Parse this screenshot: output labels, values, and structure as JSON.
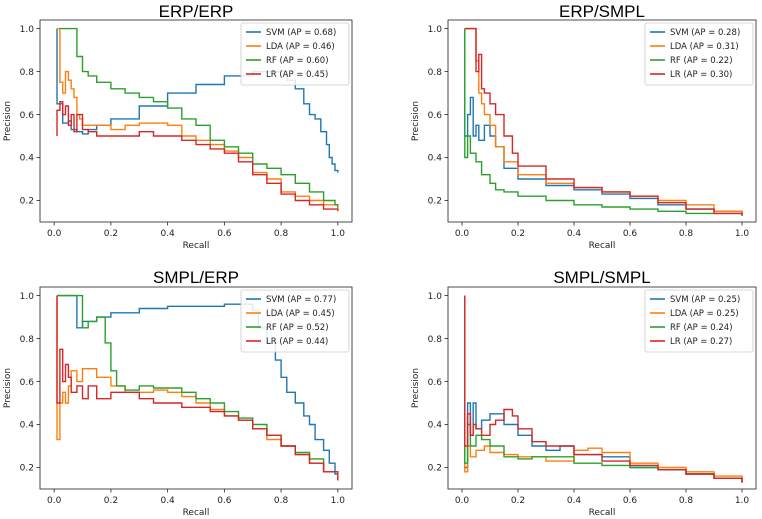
{
  "chart_data": [
    {
      "type": "line",
      "title": "ERP/ERP",
      "xlabel": "Recall",
      "ylabel": "Precision",
      "xlim": [
        -0.05,
        1.05
      ],
      "ylim": [
        0.1,
        1.04
      ],
      "xticks": [
        "0.0",
        "0.2",
        "0.4",
        "0.6",
        "0.8",
        "1.0"
      ],
      "yticks": [
        "0.2",
        "0.4",
        "0.6",
        "0.8",
        "1.0"
      ],
      "legend_position": "top-right",
      "series": [
        {
          "name": "SVM (AP = 0.68)",
          "color": "#1f77b4",
          "x": [
            0.01,
            0.01,
            0.03,
            0.03,
            0.05,
            0.06,
            0.08,
            0.1,
            0.12,
            0.15,
            0.2,
            0.3,
            0.4,
            0.5,
            0.6,
            0.7,
            0.75,
            0.8,
            0.82,
            0.85,
            0.88,
            0.9,
            0.92,
            0.94,
            0.96,
            0.97,
            0.98,
            0.99,
            1.0
          ],
          "y": [
            1.0,
            0.65,
            0.62,
            0.56,
            0.57,
            0.53,
            0.52,
            0.51,
            0.53,
            0.55,
            0.58,
            0.64,
            0.7,
            0.74,
            0.78,
            0.8,
            0.8,
            0.8,
            0.76,
            0.72,
            0.65,
            0.6,
            0.58,
            0.52,
            0.46,
            0.4,
            0.37,
            0.34,
            0.33
          ]
        },
        {
          "name": "LDA (AP = 0.46)",
          "color": "#ff7f0e",
          "x": [
            0.01,
            0.02,
            0.03,
            0.04,
            0.05,
            0.06,
            0.07,
            0.08,
            0.09,
            0.1,
            0.12,
            0.15,
            0.2,
            0.25,
            0.3,
            0.35,
            0.4,
            0.45,
            0.5,
            0.55,
            0.6,
            0.65,
            0.7,
            0.75,
            0.8,
            0.85,
            0.9,
            0.95,
            1.0
          ],
          "y": [
            1.0,
            0.75,
            0.7,
            0.8,
            0.76,
            0.72,
            0.68,
            0.6,
            0.58,
            0.55,
            0.55,
            0.55,
            0.53,
            0.55,
            0.56,
            0.56,
            0.55,
            0.5,
            0.48,
            0.46,
            0.43,
            0.4,
            0.33,
            0.3,
            0.24,
            0.22,
            0.2,
            0.18,
            0.16
          ]
        },
        {
          "name": "RF (AP = 0.60)",
          "color": "#2ca02c",
          "x": [
            0.02,
            0.07,
            0.08,
            0.1,
            0.12,
            0.15,
            0.2,
            0.25,
            0.3,
            0.35,
            0.4,
            0.45,
            0.5,
            0.55,
            0.6,
            0.65,
            0.7,
            0.75,
            0.8,
            0.85,
            0.9,
            0.95,
            0.99,
            1.0
          ],
          "y": [
            1.0,
            1.0,
            0.87,
            0.8,
            0.78,
            0.75,
            0.72,
            0.7,
            0.68,
            0.66,
            0.63,
            0.58,
            0.55,
            0.48,
            0.45,
            0.42,
            0.37,
            0.35,
            0.32,
            0.28,
            0.24,
            0.2,
            0.18,
            0.17
          ]
        },
        {
          "name": "LR (AP = 0.45)",
          "color": "#d62728",
          "x": [
            0.01,
            0.01,
            0.02,
            0.03,
            0.04,
            0.05,
            0.06,
            0.07,
            0.08,
            0.1,
            0.12,
            0.15,
            0.2,
            0.25,
            0.3,
            0.35,
            0.4,
            0.45,
            0.5,
            0.55,
            0.6,
            0.65,
            0.7,
            0.75,
            0.8,
            0.85,
            0.9,
            0.95,
            1.0
          ],
          "y": [
            0.5,
            0.62,
            0.66,
            0.6,
            0.64,
            0.55,
            0.6,
            0.52,
            0.6,
            0.53,
            0.52,
            0.5,
            0.5,
            0.5,
            0.52,
            0.5,
            0.5,
            0.48,
            0.46,
            0.44,
            0.42,
            0.38,
            0.32,
            0.28,
            0.23,
            0.2,
            0.18,
            0.16,
            0.15
          ]
        }
      ]
    },
    {
      "type": "line",
      "title": "ERP/SMPL",
      "xlabel": "Recall",
      "ylabel": "Precision",
      "xlim": [
        -0.05,
        1.05
      ],
      "ylim": [
        0.1,
        1.04
      ],
      "xticks": [
        "0.0",
        "0.2",
        "0.4",
        "0.6",
        "0.8",
        "1.0"
      ],
      "yticks": [
        "0.2",
        "0.4",
        "0.6",
        "0.8",
        "1.0"
      ],
      "legend_position": "top-right",
      "series": [
        {
          "name": "SVM (AP = 0.28)",
          "color": "#1f77b4",
          "x": [
            0.01,
            0.01,
            0.02,
            0.03,
            0.04,
            0.05,
            0.06,
            0.08,
            0.1,
            0.12,
            0.15,
            0.2,
            0.3,
            0.4,
            0.5,
            0.6,
            0.7,
            0.8,
            0.9,
            1.0
          ],
          "y": [
            1.0,
            0.5,
            0.6,
            0.68,
            0.5,
            0.55,
            0.48,
            0.55,
            0.5,
            0.45,
            0.35,
            0.3,
            0.27,
            0.25,
            0.23,
            0.21,
            0.18,
            0.16,
            0.15,
            0.13
          ]
        },
        {
          "name": "LDA (AP = 0.31)",
          "color": "#ff7f0e",
          "x": [
            0.01,
            0.04,
            0.05,
            0.06,
            0.07,
            0.08,
            0.1,
            0.12,
            0.15,
            0.2,
            0.3,
            0.4,
            0.5,
            0.6,
            0.7,
            0.8,
            0.9,
            1.0
          ],
          "y": [
            1.0,
            1.0,
            0.85,
            0.7,
            0.65,
            0.6,
            0.55,
            0.45,
            0.38,
            0.32,
            0.28,
            0.26,
            0.24,
            0.22,
            0.2,
            0.18,
            0.15,
            0.13
          ]
        },
        {
          "name": "RF (AP = 0.22)",
          "color": "#2ca02c",
          "x": [
            0.01,
            0.01,
            0.02,
            0.03,
            0.05,
            0.07,
            0.1,
            0.12,
            0.15,
            0.2,
            0.3,
            0.4,
            0.5,
            0.6,
            0.7,
            0.8,
            0.9,
            1.0
          ],
          "y": [
            1.0,
            0.4,
            0.5,
            0.42,
            0.38,
            0.32,
            0.28,
            0.25,
            0.24,
            0.22,
            0.2,
            0.18,
            0.17,
            0.16,
            0.15,
            0.14,
            0.14,
            0.13
          ]
        },
        {
          "name": "LR (AP = 0.30)",
          "color": "#d62728",
          "x": [
            0.01,
            0.05,
            0.06,
            0.07,
            0.08,
            0.1,
            0.12,
            0.15,
            0.18,
            0.2,
            0.3,
            0.4,
            0.5,
            0.6,
            0.7,
            0.8,
            0.9,
            1.0
          ],
          "y": [
            1.0,
            0.8,
            0.88,
            0.72,
            0.7,
            0.65,
            0.6,
            0.5,
            0.42,
            0.36,
            0.3,
            0.26,
            0.24,
            0.22,
            0.19,
            0.16,
            0.14,
            0.13
          ]
        }
      ]
    },
    {
      "type": "line",
      "title": "SMPL/ERP",
      "xlabel": "Recall",
      "ylabel": "Precision",
      "xlim": [
        -0.05,
        1.05
      ],
      "ylim": [
        0.1,
        1.04
      ],
      "xticks": [
        "0.0",
        "0.2",
        "0.4",
        "0.6",
        "0.8",
        "1.0"
      ],
      "yticks": [
        "0.2",
        "0.4",
        "0.6",
        "0.8",
        "1.0"
      ],
      "legend_position": "top-right",
      "series": [
        {
          "name": "SVM (AP = 0.77)",
          "color": "#1f77b4",
          "x": [
            0.01,
            0.07,
            0.08,
            0.1,
            0.15,
            0.2,
            0.3,
            0.4,
            0.5,
            0.6,
            0.65,
            0.7,
            0.72,
            0.75,
            0.78,
            0.8,
            0.82,
            0.85,
            0.88,
            0.9,
            0.92,
            0.95,
            0.97,
            0.99,
            1.0
          ],
          "y": [
            1.0,
            1.0,
            0.85,
            0.88,
            0.9,
            0.92,
            0.94,
            0.95,
            0.95,
            0.96,
            0.96,
            0.93,
            0.85,
            0.78,
            0.7,
            0.62,
            0.55,
            0.5,
            0.44,
            0.4,
            0.33,
            0.28,
            0.22,
            0.17,
            0.14
          ]
        },
        {
          "name": "LDA (AP = 0.45)",
          "color": "#ff7f0e",
          "x": [
            0.01,
            0.01,
            0.02,
            0.03,
            0.04,
            0.05,
            0.06,
            0.08,
            0.1,
            0.15,
            0.2,
            0.25,
            0.3,
            0.35,
            0.4,
            0.45,
            0.5,
            0.55,
            0.6,
            0.65,
            0.7,
            0.75,
            0.8,
            0.85,
            0.9,
            0.95,
            1.0
          ],
          "y": [
            1.0,
            0.33,
            0.5,
            0.55,
            0.5,
            0.58,
            0.65,
            0.6,
            0.66,
            0.62,
            0.58,
            0.55,
            0.55,
            0.56,
            0.55,
            0.53,
            0.5,
            0.47,
            0.44,
            0.42,
            0.38,
            0.33,
            0.3,
            0.26,
            0.22,
            0.18,
            0.14
          ]
        },
        {
          "name": "RF (AP = 0.52)",
          "color": "#2ca02c",
          "x": [
            0.01,
            0.07,
            0.1,
            0.12,
            0.15,
            0.18,
            0.2,
            0.22,
            0.25,
            0.3,
            0.35,
            0.4,
            0.45,
            0.5,
            0.55,
            0.6,
            0.65,
            0.7,
            0.75,
            0.8,
            0.85,
            0.9,
            0.95,
            1.0
          ],
          "y": [
            1.0,
            1.0,
            0.85,
            0.88,
            0.9,
            0.78,
            0.65,
            0.58,
            0.56,
            0.58,
            0.57,
            0.57,
            0.55,
            0.52,
            0.5,
            0.46,
            0.43,
            0.4,
            0.35,
            0.3,
            0.27,
            0.24,
            0.18,
            0.14
          ]
        },
        {
          "name": "LR (AP = 0.44)",
          "color": "#d62728",
          "x": [
            0.01,
            0.01,
            0.02,
            0.03,
            0.04,
            0.05,
            0.06,
            0.08,
            0.1,
            0.12,
            0.15,
            0.2,
            0.25,
            0.3,
            0.35,
            0.4,
            0.45,
            0.5,
            0.55,
            0.6,
            0.65,
            0.7,
            0.75,
            0.8,
            0.85,
            0.9,
            0.95,
            1.0
          ],
          "y": [
            1.0,
            0.5,
            0.75,
            0.6,
            0.68,
            0.62,
            0.55,
            0.58,
            0.52,
            0.58,
            0.52,
            0.55,
            0.55,
            0.52,
            0.5,
            0.5,
            0.48,
            0.48,
            0.46,
            0.44,
            0.42,
            0.38,
            0.35,
            0.3,
            0.26,
            0.22,
            0.18,
            0.14
          ]
        }
      ]
    },
    {
      "type": "line",
      "title": "SMPL/SMPL",
      "xlabel": "Recall",
      "ylabel": "Precision",
      "xlim": [
        -0.05,
        1.05
      ],
      "ylim": [
        0.1,
        1.04
      ],
      "xticks": [
        "0.0",
        "0.2",
        "0.4",
        "0.6",
        "0.8",
        "1.0"
      ],
      "yticks": [
        "0.2",
        "0.4",
        "0.6",
        "0.8",
        "1.0"
      ],
      "legend_position": "top-right",
      "series": [
        {
          "name": "SVM (AP = 0.25)",
          "color": "#1f77b4",
          "x": [
            0.01,
            0.01,
            0.02,
            0.03,
            0.04,
            0.05,
            0.07,
            0.1,
            0.15,
            0.2,
            0.25,
            0.3,
            0.35,
            0.4,
            0.5,
            0.6,
            0.7,
            0.8,
            0.9,
            1.0
          ],
          "y": [
            1.0,
            0.2,
            0.5,
            0.35,
            0.5,
            0.38,
            0.42,
            0.45,
            0.4,
            0.35,
            0.3,
            0.28,
            0.3,
            0.26,
            0.25,
            0.2,
            0.19,
            0.17,
            0.15,
            0.13
          ]
        },
        {
          "name": "LDA (AP = 0.25)",
          "color": "#ff7f0e",
          "x": [
            0.01,
            0.01,
            0.02,
            0.03,
            0.05,
            0.08,
            0.1,
            0.15,
            0.2,
            0.3,
            0.4,
            0.45,
            0.5,
            0.6,
            0.7,
            0.8,
            0.9,
            1.0
          ],
          "y": [
            1.0,
            0.18,
            0.3,
            0.25,
            0.28,
            0.3,
            0.27,
            0.26,
            0.25,
            0.23,
            0.28,
            0.29,
            0.27,
            0.22,
            0.2,
            0.18,
            0.16,
            0.13
          ]
        },
        {
          "name": "RF (AP = 0.24)",
          "color": "#2ca02c",
          "x": [
            0.01,
            0.01,
            0.02,
            0.03,
            0.05,
            0.07,
            0.1,
            0.15,
            0.2,
            0.25,
            0.3,
            0.4,
            0.5,
            0.6,
            0.7,
            0.8,
            0.9,
            1.0
          ],
          "y": [
            1.0,
            0.22,
            0.4,
            0.3,
            0.35,
            0.33,
            0.3,
            0.25,
            0.24,
            0.25,
            0.25,
            0.22,
            0.21,
            0.2,
            0.19,
            0.17,
            0.15,
            0.13
          ]
        },
        {
          "name": "LR (AP = 0.27)",
          "color": "#d62728",
          "x": [
            0.01,
            0.01,
            0.02,
            0.03,
            0.04,
            0.05,
            0.07,
            0.1,
            0.12,
            0.15,
            0.18,
            0.2,
            0.25,
            0.3,
            0.4,
            0.5,
            0.6,
            0.7,
            0.8,
            0.9,
            1.0
          ],
          "y": [
            1.0,
            0.3,
            0.45,
            0.35,
            0.4,
            0.38,
            0.35,
            0.4,
            0.42,
            0.47,
            0.44,
            0.38,
            0.32,
            0.3,
            0.26,
            0.23,
            0.21,
            0.19,
            0.17,
            0.15,
            0.13
          ]
        }
      ]
    }
  ]
}
